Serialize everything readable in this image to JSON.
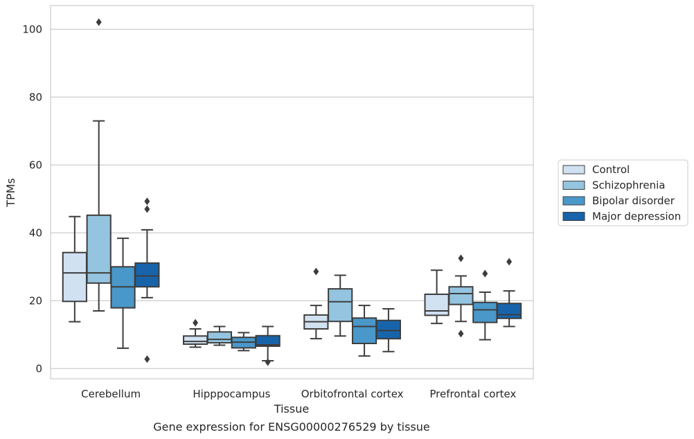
{
  "caption": "Gene expression for ENSG00000276529 by tissue",
  "chart_data": {
    "type": "box",
    "xlabel": "Tissue",
    "ylabel": "TPMs",
    "ylim": [
      -3,
      107
    ],
    "yticks": [
      0,
      20,
      40,
      60,
      80,
      100
    ],
    "grid": "horizontal",
    "legend_position": "right",
    "categories": [
      "Cerebellum",
      "Hipppocampus",
      "Orbitofrontal cortex",
      "Prefrontal cortex"
    ],
    "series": [
      {
        "name": "Control",
        "color": "#d0e1f2",
        "boxes": [
          {
            "whislo": 13.8,
            "q1": 19.8,
            "med": 28.2,
            "q3": 34.2,
            "whishi": 44.8,
            "fliers": []
          },
          {
            "whislo": 6.3,
            "q1": 7.2,
            "med": 8.0,
            "q3": 9.6,
            "whishi": 11.7,
            "fliers": [
              13.5
            ]
          },
          {
            "whislo": 8.8,
            "q1": 11.7,
            "med": 13.8,
            "q3": 15.8,
            "whishi": 18.6,
            "fliers": [
              28.6
            ]
          },
          {
            "whislo": 13.3,
            "q1": 15.7,
            "med": 17.0,
            "q3": 21.9,
            "whishi": 29.0,
            "fliers": []
          }
        ]
      },
      {
        "name": "Schizophrenia",
        "color": "#94c4df",
        "boxes": [
          {
            "whislo": 17.0,
            "q1": 25.2,
            "med": 28.2,
            "q3": 45.2,
            "whishi": 73.0,
            "fliers": [
              102.1
            ]
          },
          {
            "whislo": 6.9,
            "q1": 7.6,
            "med": 8.6,
            "q3": 10.8,
            "whishi": 12.4,
            "fliers": []
          },
          {
            "whislo": 9.6,
            "q1": 13.9,
            "med": 19.7,
            "q3": 23.5,
            "whishi": 27.5,
            "fliers": []
          },
          {
            "whislo": 13.9,
            "q1": 18.9,
            "med": 22.1,
            "q3": 24.1,
            "whishi": 27.3,
            "fliers": [
              32.5,
              10.3
            ]
          }
        ]
      },
      {
        "name": "Bipolar disorder",
        "color": "#4a98c9",
        "boxes": [
          {
            "whislo": 6.0,
            "q1": 17.9,
            "med": 24.1,
            "q3": 30.0,
            "whishi": 38.4,
            "fliers": []
          },
          {
            "whislo": 5.3,
            "q1": 6.1,
            "med": 7.8,
            "q3": 9.2,
            "whishi": 10.6,
            "fliers": []
          },
          {
            "whislo": 3.7,
            "q1": 7.4,
            "med": 12.4,
            "q3": 14.9,
            "whishi": 18.6,
            "fliers": []
          },
          {
            "whislo": 8.5,
            "q1": 13.6,
            "med": 17.3,
            "q3": 19.5,
            "whishi": 22.5,
            "fliers": [
              28.0
            ]
          }
        ]
      },
      {
        "name": "Major depression",
        "color": "#1764ab",
        "boxes": [
          {
            "whislo": 20.9,
            "q1": 24.1,
            "med": 27.3,
            "q3": 31.1,
            "whishi": 40.9,
            "fliers": [
              49.3,
              47.0,
              2.8
            ]
          },
          {
            "whislo": 2.3,
            "q1": 6.6,
            "med": 7.0,
            "q3": 9.7,
            "whishi": 12.4,
            "fliers": [
              1.9
            ]
          },
          {
            "whislo": 5.0,
            "q1": 8.8,
            "med": 11.2,
            "q3": 14.2,
            "whishi": 17.6,
            "fliers": []
          },
          {
            "whislo": 12.4,
            "q1": 14.8,
            "med": 15.9,
            "q3": 19.2,
            "whishi": 22.9,
            "fliers": [
              31.5
            ]
          }
        ]
      }
    ]
  }
}
